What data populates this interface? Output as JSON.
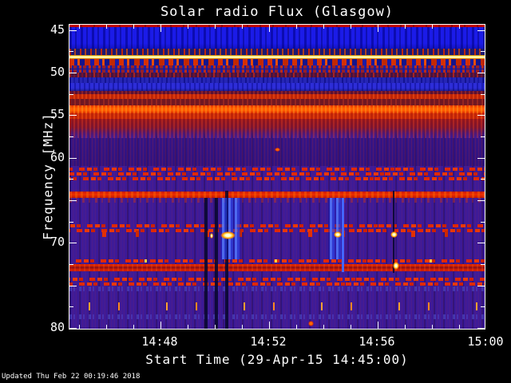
{
  "footer": {
    "updated": "Updated Thu Feb 22 00:19:46 2018"
  },
  "chart_data": {
    "type": "heatmap",
    "title": "Solar radio Flux (Glasgow)",
    "xlabel": "Start Time (29-Apr-15 14:45:00)",
    "ylabel": "Frequency [MHz]",
    "start_time_label": "29-Apr-15 14:45:00",
    "x_ticks": [
      {
        "label": "14:48",
        "t_min": 3
      },
      {
        "label": "14:52",
        "t_min": 7
      },
      {
        "label": "14:56",
        "t_min": 11
      },
      {
        "label": "15:00",
        "t_min": 15
      }
    ],
    "x_minor_tick_every_min": 1,
    "y_ticks": [
      {
        "label": "45",
        "mhz": 45
      },
      {
        "label": "50",
        "mhz": 50
      },
      {
        "label": "55",
        "mhz": 55
      },
      {
        "label": "60",
        "mhz": 60
      },
      {
        "label": "",
        "mhz": 65
      },
      {
        "label": "70",
        "mhz": 70
      },
      {
        "label": "",
        "mhz": 75
      },
      {
        "label": "80",
        "mhz": 80
      }
    ],
    "y_minor_tick_every_mhz": 2.5,
    "y_axis_inverted": true,
    "x_range_min": [
      -0.35,
      15
    ],
    "y_range_mhz": [
      44.37,
      80.28
    ],
    "grid": false,
    "legend": "none",
    "colormap": "blue (low flux) -> purple -> red -> orange -> yellow/white (high flux)",
    "palette": {
      "low": "#1b1be8",
      "background": "#3c1a97",
      "high": "#ff5c00",
      "peak": "#fffdc8",
      "dropout": "#08082d"
    },
    "bands": [
      {
        "f0": 44.37,
        "f1": 44.68,
        "style": "edge-red",
        "note": "continuous red strip at top edge"
      },
      {
        "f0": 44.68,
        "f1": 47.18,
        "style": "deep-blue",
        "note": "quiet deep-blue band"
      },
      {
        "f0": 47.18,
        "f1": 47.93,
        "style": "dark-speckle",
        "note": "dark band with red speckle"
      },
      {
        "f0": 47.93,
        "f1": 48.4,
        "style": "yellow-line",
        "note": "saturated carrier line (white/yellow)"
      },
      {
        "f0": 48.4,
        "f1": 49.15,
        "style": "comb-teeth",
        "note": "comb of red/orange teeth on blue"
      },
      {
        "f0": 49.15,
        "f1": 50.0,
        "style": "comb-speckle",
        "note": "dense red speckle rows on blue"
      },
      {
        "f0": 50.0,
        "f1": 50.56,
        "style": "maroon-speckle",
        "note": "maroon speckled row"
      },
      {
        "f0": 50.56,
        "f1": 51.2,
        "style": "blue-striate",
        "note": "striated blue band"
      },
      {
        "f0": 51.2,
        "f1": 52.15,
        "style": "blue-band",
        "note": "bright blue band"
      },
      {
        "f0": 52.15,
        "f1": 52.53,
        "style": "maroon",
        "note": "maroon transition"
      },
      {
        "f0": 52.53,
        "f1": 53.09,
        "style": "red-mid",
        "note": "red band"
      },
      {
        "f0": 53.09,
        "f1": 53.84,
        "style": "maroon-dark",
        "note": "dark red gap"
      },
      {
        "f0": 53.84,
        "f1": 54.78,
        "style": "red-bright",
        "note": "brightest orange-red broadcast band"
      },
      {
        "f0": 54.78,
        "f1": 55.43,
        "style": "red-mid",
        "note": "red band"
      },
      {
        "f0": 55.43,
        "f1": 57.68,
        "style": "red-fade",
        "note": "dark red fading into purple"
      },
      {
        "f0": 57.68,
        "f1": 60.97,
        "style": "purple-dim",
        "note": "dim purple region"
      },
      {
        "f0": 60.97,
        "f1": 63.2,
        "style": "barcode",
        "rows": 3,
        "note": "three rows of intermittent red dashes"
      },
      {
        "f0": 63.97,
        "f1": 64.7,
        "style": "red-solid",
        "note": "solid red RFI line"
      },
      {
        "f0": 64.7,
        "f1": 65.28,
        "style": "speckle-faint",
        "note": "faint red speckle"
      },
      {
        "f0": 67.62,
        "f1": 68.56,
        "style": "barcode",
        "rows": 2,
        "note": "intermittent red dashes"
      },
      {
        "f0": 68.56,
        "f1": 69.3,
        "style": "sparse-dash",
        "note": "sparse dashes with bright bursts"
      },
      {
        "f0": 71.75,
        "f1": 72.5,
        "style": "barcode",
        "rows": 1,
        "bright": true,
        "note": "dash row with yellow flecks"
      },
      {
        "f0": 72.5,
        "f1": 73.34,
        "style": "red-solid-dark",
        "note": "double crimson RFI line"
      },
      {
        "f0": 73.9,
        "f1": 74.65,
        "style": "barcode",
        "rows": 2,
        "note": "intermittent red dashes"
      },
      {
        "f0": 75.12,
        "f1": 75.68,
        "style": "faint-blue",
        "note": "faint light-blue noise row"
      },
      {
        "f0": 77.0,
        "f1": 77.93,
        "style": "sparse-orange",
        "note": "sparse short orange bursts"
      },
      {
        "f0": 78.4,
        "f1": 78.96,
        "style": "faint-blue",
        "note": "faint light-blue noise row"
      }
    ],
    "events": [
      {
        "type": "dark-line",
        "time": "14:49:41",
        "t0": 4.63,
        "t1": 4.73,
        "f0": 64.7,
        "f1": 80.2,
        "note": "narrow vertical dropout"
      },
      {
        "type": "dark-line",
        "time": "14:50:04",
        "t0": 5.01,
        "t1": 5.11,
        "f0": 64.7,
        "f1": 80.2,
        "note": "narrow vertical dropout"
      },
      {
        "type": "dark-line",
        "time": "14:50:26",
        "t0": 5.39,
        "t1": 5.49,
        "f0": 63.9,
        "f1": 80.2,
        "note": "narrow vertical dropout"
      },
      {
        "type": "blue-streak",
        "time": "14:50:12-14:50:57",
        "t0": 5.2,
        "t1": 5.95,
        "f0": 64.7,
        "f1": 71.9,
        "note": "bright blue vertical columns"
      },
      {
        "type": "blue-streak",
        "time": "14:54:11-14:54:41",
        "t0": 9.18,
        "t1": 9.68,
        "f0": 64.7,
        "f1": 71.9,
        "note": "bright blue vertical columns"
      },
      {
        "type": "blue-line",
        "time": "14:54:43",
        "t0": 9.69,
        "t1": 9.76,
        "f0": 64.7,
        "f1": 73.4,
        "note": "thin blue vertical line"
      },
      {
        "type": "dark-line",
        "time": "14:56:35",
        "t0": 11.55,
        "t1": 11.63,
        "f0": 63.9,
        "f1": 73.5,
        "note": "dark vertical line"
      },
      {
        "type": "burst",
        "time": "14:49:50",
        "t0": 4.82,
        "t1": 4.95,
        "f0": 68.8,
        "f1": 69.5,
        "note": "small white burst"
      },
      {
        "type": "burst",
        "time": "14:50:13-14:50:47",
        "t0": 5.22,
        "t1": 5.78,
        "f0": 68.7,
        "f1": 69.6,
        "note": "brightest yellow-white burst group"
      },
      {
        "type": "burst",
        "time": "14:54:23-14:54:41",
        "t0": 9.39,
        "t1": 9.68,
        "f0": 68.7,
        "f1": 69.4,
        "note": "yellow-white burst group"
      },
      {
        "type": "burst",
        "time": "14:56:28-14:56:44",
        "t0": 11.47,
        "t1": 11.73,
        "f0": 68.7,
        "f1": 69.4,
        "note": "yellow-white burst"
      },
      {
        "type": "burst",
        "time": "14:56:34",
        "t0": 11.56,
        "t1": 11.79,
        "f0": 72.2,
        "f1": 73.2,
        "note": "yellow blob on crimson line"
      },
      {
        "type": "orange-dot",
        "time": "14:52:13",
        "t0": 7.21,
        "t1": 7.41,
        "f0": 58.8,
        "f1": 59.3,
        "note": "isolated orange point"
      },
      {
        "type": "orange-dot",
        "time": "14:53:26",
        "t0": 8.44,
        "t1": 8.64,
        "f0": 79.2,
        "f1": 79.8,
        "note": "small orange mark near bottom"
      }
    ]
  }
}
